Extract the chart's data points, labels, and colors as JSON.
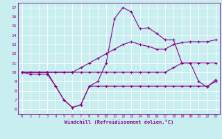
{
  "xlabel": "Windchill (Refroidissement éolien,°C)",
  "background_color": "#c8eef0",
  "grid_color": "#ffffff",
  "line_color": "#880088",
  "x_ticks": [
    0,
    1,
    2,
    3,
    4,
    5,
    6,
    7,
    8,
    9,
    10,
    11,
    12,
    13,
    14,
    15,
    16,
    17,
    18,
    19,
    20,
    21,
    22,
    23
  ],
  "y_ticks": [
    6,
    7,
    8,
    9,
    10,
    11,
    12,
    13,
    14,
    15,
    16,
    17
  ],
  "xlim": [
    -0.5,
    23.5
  ],
  "ylim": [
    5.5,
    17.5
  ],
  "series": [
    {
      "x": [
        0,
        1,
        2,
        3,
        4,
        5,
        6,
        7,
        8,
        9,
        10,
        11,
        12,
        13,
        14,
        15,
        16,
        17,
        18,
        19,
        20,
        21,
        22,
        23
      ],
      "y": [
        10,
        10,
        10,
        10,
        8.5,
        7,
        6.2,
        6.5,
        8.5,
        9,
        11,
        15.8,
        17,
        16.5,
        14.7,
        14.8,
        14.2,
        13.5,
        13.5,
        11,
        11,
        9,
        8.4,
        9.2
      ]
    },
    {
      "x": [
        0,
        1,
        2,
        3,
        4,
        5,
        6,
        7,
        8,
        9,
        10,
        11,
        12,
        13,
        14,
        15,
        16,
        17,
        18,
        19,
        20,
        21,
        22,
        23
      ],
      "y": [
        10,
        9.8,
        9.8,
        9.8,
        8.5,
        7,
        6.2,
        6.5,
        8.5,
        8.5,
        8.5,
        8.5,
        8.5,
        8.5,
        8.5,
        8.5,
        8.5,
        8.5,
        8.5,
        8.5,
        8.5,
        8.5,
        8.5,
        9.0
      ]
    },
    {
      "x": [
        0,
        1,
        2,
        3,
        4,
        5,
        6,
        7,
        8,
        9,
        10,
        11,
        12,
        13,
        14,
        15,
        16,
        17,
        18,
        19,
        20,
        21,
        22,
        23
      ],
      "y": [
        10,
        10,
        10,
        10,
        10,
        10,
        10,
        10.5,
        11,
        11.5,
        12,
        12.5,
        13,
        13.3,
        13.0,
        12.8,
        12.5,
        12.5,
        13.0,
        13.2,
        13.3,
        13.3,
        13.3,
        13.5
      ]
    },
    {
      "x": [
        0,
        1,
        2,
        3,
        4,
        5,
        6,
        7,
        8,
        9,
        10,
        11,
        12,
        13,
        14,
        15,
        16,
        17,
        18,
        19,
        20,
        21,
        22,
        23
      ],
      "y": [
        10,
        10,
        10,
        10,
        10,
        10,
        10,
        10,
        10,
        10,
        10,
        10,
        10,
        10,
        10,
        10,
        10,
        10,
        10.5,
        11,
        11,
        11,
        11,
        11
      ]
    }
  ]
}
